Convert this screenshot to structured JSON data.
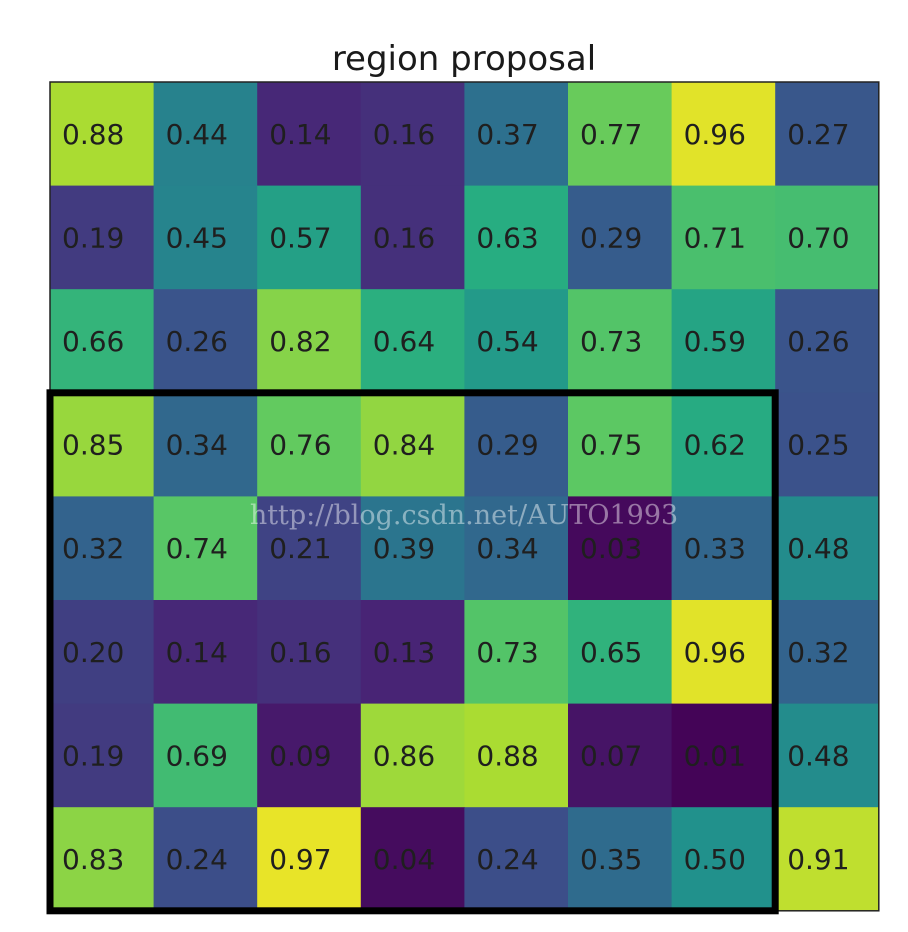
{
  "chart_data": {
    "type": "heatmap",
    "title": "region proposal",
    "rows": 8,
    "cols": 8,
    "values": [
      [
        "0.88",
        "0.44",
        "0.14",
        "0.16",
        "0.37",
        "0.77",
        "0.96",
        "0.27"
      ],
      [
        "0.19",
        "0.45",
        "0.57",
        "0.16",
        "0.63",
        "0.29",
        "0.71",
        "0.70"
      ],
      [
        "0.66",
        "0.26",
        "0.82",
        "0.64",
        "0.54",
        "0.73",
        "0.59",
        "0.26"
      ],
      [
        "0.85",
        "0.34",
        "0.76",
        "0.84",
        "0.29",
        "0.75",
        "0.62",
        "0.25"
      ],
      [
        "0.32",
        "0.74",
        "0.21",
        "0.39",
        "0.34",
        "0.03",
        "0.33",
        "0.48"
      ],
      [
        "0.20",
        "0.14",
        "0.16",
        "0.13",
        "0.73",
        "0.65",
        "0.96",
        "0.32"
      ],
      [
        "0.19",
        "0.69",
        "0.09",
        "0.86",
        "0.88",
        "0.07",
        "0.01",
        "0.48"
      ],
      [
        "0.83",
        "0.24",
        "0.97",
        "0.04",
        "0.24",
        "0.35",
        "0.50",
        "0.91"
      ]
    ],
    "colormap": "viridis",
    "value_range": [
      0,
      1
    ],
    "region": {
      "row_start": 3,
      "row_end": 7,
      "col_start": 0,
      "col_end": 6
    },
    "watermark": "http://blog.csdn.net/AUTO1993"
  }
}
